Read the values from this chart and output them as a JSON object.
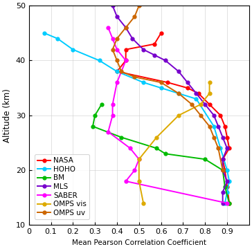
{
  "title": "",
  "xlabel": "Mean Pearson Correlation Coefficient",
  "ylabel": "Altitude (km)",
  "xlim": [
    0,
    1.0
  ],
  "ylim": [
    10,
    50
  ],
  "xticks": [
    0,
    0.1,
    0.2,
    0.3,
    0.4,
    0.5,
    0.6,
    0.7,
    0.8,
    0.9
  ],
  "yticks": [
    10,
    20,
    30,
    40,
    50
  ],
  "series": {
    "NASA": {
      "color": "#ff0000",
      "marker": "o",
      "x": [
        0.6,
        0.57,
        0.44,
        0.44,
        0.4,
        0.63,
        0.72,
        0.77,
        0.82,
        0.87,
        0.89,
        0.9,
        0.91,
        0.88,
        0.89,
        0.9,
        0.91
      ],
      "y": [
        45,
        43,
        42,
        40,
        38,
        36,
        35,
        34,
        32,
        30,
        28,
        26,
        24,
        22,
        20,
        17,
        14
      ]
    },
    "HOHO": {
      "color": "#00ccff",
      "marker": "o",
      "x": [
        0.07,
        0.13,
        0.2,
        0.32,
        0.4,
        0.52,
        0.6,
        0.68,
        0.76,
        0.84,
        0.87,
        0.9,
        0.91,
        0.9,
        0.89
      ],
      "y": [
        45,
        44,
        42,
        40,
        38,
        36,
        35,
        34,
        33,
        28,
        24,
        20,
        18,
        16,
        14
      ]
    },
    "BM": {
      "color": "#00bb00",
      "marker": "o",
      "x": [
        0.33,
        0.3,
        0.29,
        0.42,
        0.58,
        0.62,
        0.8,
        0.88,
        0.89,
        0.91
      ],
      "y": [
        32,
        30,
        28,
        26,
        24,
        23,
        22,
        20,
        17,
        14
      ]
    },
    "MLS": {
      "color": "#7700cc",
      "marker": "o",
      "x": [
        0.38,
        0.4,
        0.44,
        0.47,
        0.52,
        0.57,
        0.62,
        0.68,
        0.72,
        0.76,
        0.8,
        0.84,
        0.86,
        0.88,
        0.9,
        0.88,
        0.88,
        0.9,
        0.88,
        0.88
      ],
      "y": [
        50,
        48,
        46,
        44,
        42,
        41,
        40,
        38,
        36,
        34,
        32,
        30,
        28,
        26,
        24,
        22,
        20,
        18,
        16,
        14
      ]
    },
    "SABER": {
      "color": "#ff00ff",
      "marker": "o",
      "x": [
        0.36,
        0.38,
        0.4,
        0.44,
        0.4,
        0.38,
        0.38,
        0.36,
        0.46,
        0.5,
        0.48,
        0.44,
        0.9
      ],
      "y": [
        46,
        44,
        42,
        40,
        36,
        32,
        30,
        27,
        24,
        22,
        20,
        18,
        14
      ]
    },
    "OMPS_vis": {
      "color": "#ddaa00",
      "marker": "o",
      "x": [
        0.82,
        0.82,
        0.78,
        0.68,
        0.58,
        0.5,
        0.5,
        0.52
      ],
      "y": [
        36,
        34,
        32,
        30,
        26,
        22,
        18,
        14
      ]
    },
    "OMPS_uv": {
      "color": "#cc6600",
      "marker": "o",
      "x": [
        0.5,
        0.48,
        0.44,
        0.4,
        0.38,
        0.4,
        0.42,
        0.48,
        0.6,
        0.68,
        0.74,
        0.78,
        0.82,
        0.84,
        0.86,
        0.88
      ],
      "y": [
        50,
        48,
        46,
        44,
        42,
        40,
        38,
        37,
        36,
        34,
        32,
        30,
        28,
        26,
        24,
        20
      ]
    }
  },
  "legend_labels": [
    "NASA",
    "HOHO",
    "BM",
    "MLS",
    "SABER",
    "OMPS vis",
    "OMPS uv"
  ],
  "legend_keys": [
    "NASA",
    "HOHO",
    "BM",
    "MLS",
    "SABER",
    "OMPS_vis",
    "OMPS_uv"
  ],
  "figsize": [
    3.64,
    3.6
  ],
  "dpi": 100
}
